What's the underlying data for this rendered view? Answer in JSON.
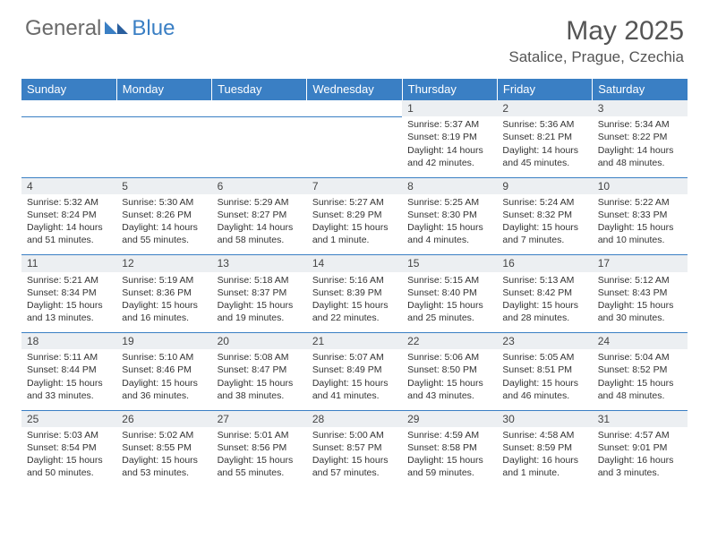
{
  "brand": {
    "general": "General",
    "blue": "Blue"
  },
  "header": {
    "title": "May 2025",
    "location": "Satalice, Prague, Czechia"
  },
  "style": {
    "accent": "#3a7fc4",
    "text_color": "#333333",
    "header_text_color": "#555555",
    "daynum_bg": "#eceff2",
    "font_family": "Arial",
    "title_fontsize": 30,
    "location_fontsize": 17,
    "day_header_fontsize": 13,
    "cell_fontsize": 10.5
  },
  "calendar": {
    "type": "table",
    "columns": [
      "Sunday",
      "Monday",
      "Tuesday",
      "Wednesday",
      "Thursday",
      "Friday",
      "Saturday"
    ],
    "weeks": [
      [
        null,
        null,
        null,
        null,
        {
          "n": "1",
          "sr": "Sunrise: 5:37 AM",
          "ss": "Sunset: 8:19 PM",
          "dl": "Daylight: 14 hours and 42 minutes."
        },
        {
          "n": "2",
          "sr": "Sunrise: 5:36 AM",
          "ss": "Sunset: 8:21 PM",
          "dl": "Daylight: 14 hours and 45 minutes."
        },
        {
          "n": "3",
          "sr": "Sunrise: 5:34 AM",
          "ss": "Sunset: 8:22 PM",
          "dl": "Daylight: 14 hours and 48 minutes."
        }
      ],
      [
        {
          "n": "4",
          "sr": "Sunrise: 5:32 AM",
          "ss": "Sunset: 8:24 PM",
          "dl": "Daylight: 14 hours and 51 minutes."
        },
        {
          "n": "5",
          "sr": "Sunrise: 5:30 AM",
          "ss": "Sunset: 8:26 PM",
          "dl": "Daylight: 14 hours and 55 minutes."
        },
        {
          "n": "6",
          "sr": "Sunrise: 5:29 AM",
          "ss": "Sunset: 8:27 PM",
          "dl": "Daylight: 14 hours and 58 minutes."
        },
        {
          "n": "7",
          "sr": "Sunrise: 5:27 AM",
          "ss": "Sunset: 8:29 PM",
          "dl": "Daylight: 15 hours and 1 minute."
        },
        {
          "n": "8",
          "sr": "Sunrise: 5:25 AM",
          "ss": "Sunset: 8:30 PM",
          "dl": "Daylight: 15 hours and 4 minutes."
        },
        {
          "n": "9",
          "sr": "Sunrise: 5:24 AM",
          "ss": "Sunset: 8:32 PM",
          "dl": "Daylight: 15 hours and 7 minutes."
        },
        {
          "n": "10",
          "sr": "Sunrise: 5:22 AM",
          "ss": "Sunset: 8:33 PM",
          "dl": "Daylight: 15 hours and 10 minutes."
        }
      ],
      [
        {
          "n": "11",
          "sr": "Sunrise: 5:21 AM",
          "ss": "Sunset: 8:34 PM",
          "dl": "Daylight: 15 hours and 13 minutes."
        },
        {
          "n": "12",
          "sr": "Sunrise: 5:19 AM",
          "ss": "Sunset: 8:36 PM",
          "dl": "Daylight: 15 hours and 16 minutes."
        },
        {
          "n": "13",
          "sr": "Sunrise: 5:18 AM",
          "ss": "Sunset: 8:37 PM",
          "dl": "Daylight: 15 hours and 19 minutes."
        },
        {
          "n": "14",
          "sr": "Sunrise: 5:16 AM",
          "ss": "Sunset: 8:39 PM",
          "dl": "Daylight: 15 hours and 22 minutes."
        },
        {
          "n": "15",
          "sr": "Sunrise: 5:15 AM",
          "ss": "Sunset: 8:40 PM",
          "dl": "Daylight: 15 hours and 25 minutes."
        },
        {
          "n": "16",
          "sr": "Sunrise: 5:13 AM",
          "ss": "Sunset: 8:42 PM",
          "dl": "Daylight: 15 hours and 28 minutes."
        },
        {
          "n": "17",
          "sr": "Sunrise: 5:12 AM",
          "ss": "Sunset: 8:43 PM",
          "dl": "Daylight: 15 hours and 30 minutes."
        }
      ],
      [
        {
          "n": "18",
          "sr": "Sunrise: 5:11 AM",
          "ss": "Sunset: 8:44 PM",
          "dl": "Daylight: 15 hours and 33 minutes."
        },
        {
          "n": "19",
          "sr": "Sunrise: 5:10 AM",
          "ss": "Sunset: 8:46 PM",
          "dl": "Daylight: 15 hours and 36 minutes."
        },
        {
          "n": "20",
          "sr": "Sunrise: 5:08 AM",
          "ss": "Sunset: 8:47 PM",
          "dl": "Daylight: 15 hours and 38 minutes."
        },
        {
          "n": "21",
          "sr": "Sunrise: 5:07 AM",
          "ss": "Sunset: 8:49 PM",
          "dl": "Daylight: 15 hours and 41 minutes."
        },
        {
          "n": "22",
          "sr": "Sunrise: 5:06 AM",
          "ss": "Sunset: 8:50 PM",
          "dl": "Daylight: 15 hours and 43 minutes."
        },
        {
          "n": "23",
          "sr": "Sunrise: 5:05 AM",
          "ss": "Sunset: 8:51 PM",
          "dl": "Daylight: 15 hours and 46 minutes."
        },
        {
          "n": "24",
          "sr": "Sunrise: 5:04 AM",
          "ss": "Sunset: 8:52 PM",
          "dl": "Daylight: 15 hours and 48 minutes."
        }
      ],
      [
        {
          "n": "25",
          "sr": "Sunrise: 5:03 AM",
          "ss": "Sunset: 8:54 PM",
          "dl": "Daylight: 15 hours and 50 minutes."
        },
        {
          "n": "26",
          "sr": "Sunrise: 5:02 AM",
          "ss": "Sunset: 8:55 PM",
          "dl": "Daylight: 15 hours and 53 minutes."
        },
        {
          "n": "27",
          "sr": "Sunrise: 5:01 AM",
          "ss": "Sunset: 8:56 PM",
          "dl": "Daylight: 15 hours and 55 minutes."
        },
        {
          "n": "28",
          "sr": "Sunrise: 5:00 AM",
          "ss": "Sunset: 8:57 PM",
          "dl": "Daylight: 15 hours and 57 minutes."
        },
        {
          "n": "29",
          "sr": "Sunrise: 4:59 AM",
          "ss": "Sunset: 8:58 PM",
          "dl": "Daylight: 15 hours and 59 minutes."
        },
        {
          "n": "30",
          "sr": "Sunrise: 4:58 AM",
          "ss": "Sunset: 8:59 PM",
          "dl": "Daylight: 16 hours and 1 minute."
        },
        {
          "n": "31",
          "sr": "Sunrise: 4:57 AM",
          "ss": "Sunset: 9:01 PM",
          "dl": "Daylight: 16 hours and 3 minutes."
        }
      ]
    ]
  }
}
